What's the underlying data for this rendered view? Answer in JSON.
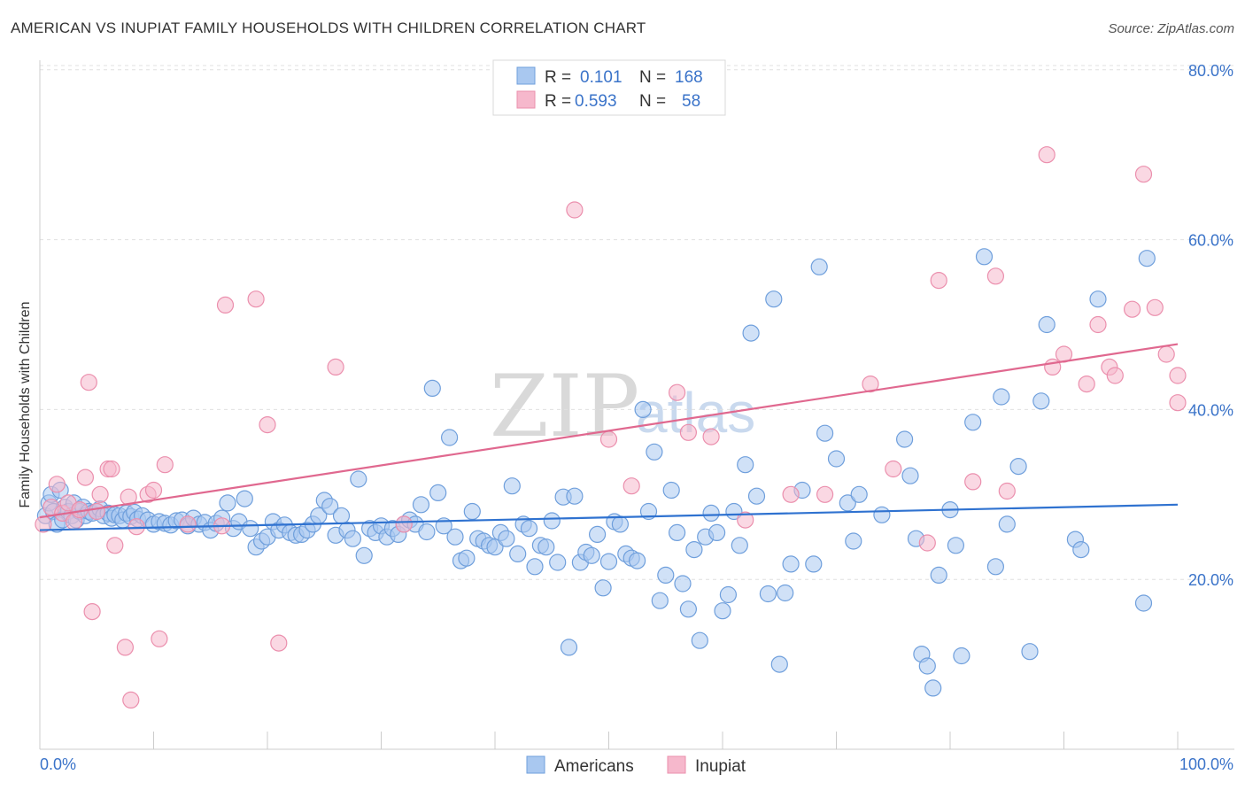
{
  "title": "AMERICAN VS INUPIAT FAMILY HOUSEHOLDS WITH CHILDREN CORRELATION CHART",
  "source": "Source: ZipAtlas.com",
  "watermark": {
    "zip": "ZIP",
    "atlas": "atlas"
  },
  "legend_top": [
    {
      "r_label": "R =",
      "r_value": "0.101",
      "n_label": "N =",
      "n_value": "168"
    },
    {
      "r_label": "R =",
      "r_value": "0.593",
      "n_label": "N =",
      "n_value": "58"
    }
  ],
  "legend_bottom": [
    "Americans",
    "Inupiat"
  ],
  "colors": {
    "americans_fill": "#a9c8f0",
    "americans_stroke": "#6f9fdc",
    "americans_line": "#2f72d0",
    "inupiat_fill": "#f6b8cc",
    "inupiat_stroke": "#eb8fad",
    "inupiat_line": "#e0688f",
    "tick_text": "#3a73c9",
    "grid": "#e0e0e0"
  },
  "chart_data": {
    "type": "scatter",
    "title": "AMERICAN VS INUPIAT FAMILY HOUSEHOLDS WITH CHILDREN CORRELATION CHART",
    "xlabel": "",
    "ylabel": "Family Households with Children",
    "xlim": [
      0,
      100
    ],
    "ylim": [
      0,
      83
    ],
    "x_tick_labels": [
      "0.0%",
      "100.0%"
    ],
    "y_ticks": [
      20,
      40,
      60,
      80
    ],
    "y_tick_labels": [
      "20.0%",
      "40.0%",
      "60.0%",
      "80.0%"
    ],
    "grid": true,
    "legend_placement": "top-center",
    "series": [
      {
        "name": "Americans",
        "R": 0.101,
        "N": 168,
        "trend": {
          "x": [
            0,
            100
          ],
          "y": [
            25.8,
            28.8
          ]
        },
        "points": [
          [
            0.5,
            27.5
          ],
          [
            0.8,
            29
          ],
          [
            1,
            30
          ],
          [
            1.2,
            28
          ],
          [
            1.5,
            26.5
          ],
          [
            1.8,
            30.5
          ],
          [
            2,
            27
          ],
          [
            2.2,
            28.5
          ],
          [
            2.5,
            28
          ],
          [
            2.8,
            27.5
          ],
          [
            3,
            29
          ],
          [
            3.2,
            27
          ],
          [
            3.5,
            28
          ],
          [
            3.8,
            28.5
          ],
          [
            4,
            27.5
          ],
          [
            4.3,
            28
          ],
          [
            4.6,
            27.8
          ],
          [
            5,
            28
          ],
          [
            5.3,
            28.3
          ],
          [
            5.6,
            27.5
          ],
          [
            6,
            27.8
          ],
          [
            6.3,
            27.2
          ],
          [
            6.6,
            27.6
          ],
          [
            7,
            27.5
          ],
          [
            7.3,
            27
          ],
          [
            7.6,
            27.8
          ],
          [
            8,
            27.4
          ],
          [
            8.3,
            27.9
          ],
          [
            8.6,
            27.1
          ],
          [
            9,
            27.5
          ],
          [
            9.5,
            27
          ],
          [
            10,
            26.5
          ],
          [
            10.5,
            26.8
          ],
          [
            11,
            26.6
          ],
          [
            11.5,
            26.4
          ],
          [
            12,
            26.9
          ],
          [
            12.5,
            27
          ],
          [
            13,
            26.3
          ],
          [
            13.5,
            27.2
          ],
          [
            14,
            26.5
          ],
          [
            14.5,
            26.7
          ],
          [
            15,
            25.8
          ],
          [
            15.5,
            26.6
          ],
          [
            16,
            27.2
          ],
          [
            16.5,
            29
          ],
          [
            17,
            26
          ],
          [
            17.5,
            26.8
          ],
          [
            18,
            29.5
          ],
          [
            18.5,
            26
          ],
          [
            19,
            23.8
          ],
          [
            19.5,
            24.5
          ],
          [
            20,
            25
          ],
          [
            20.5,
            26.8
          ],
          [
            21,
            25.8
          ],
          [
            21.5,
            26.4
          ],
          [
            22,
            25.5
          ],
          [
            22.5,
            25.2
          ],
          [
            23,
            25.3
          ],
          [
            23.5,
            25.8
          ],
          [
            24,
            26.5
          ],
          [
            24.5,
            27.5
          ],
          [
            25,
            29.3
          ],
          [
            25.5,
            28.6
          ],
          [
            26,
            25.2
          ],
          [
            26.5,
            27.5
          ],
          [
            27,
            25.8
          ],
          [
            27.5,
            24.8
          ],
          [
            28,
            31.8
          ],
          [
            28.5,
            22.8
          ],
          [
            29,
            26
          ],
          [
            29.5,
            25.5
          ],
          [
            30,
            26.3
          ],
          [
            30.5,
            25
          ],
          [
            31,
            26
          ],
          [
            31.5,
            25.3
          ],
          [
            32,
            26.5
          ],
          [
            32.5,
            27
          ],
          [
            33,
            26.5
          ],
          [
            33.5,
            28.8
          ],
          [
            34,
            25.6
          ],
          [
            34.5,
            42.5
          ],
          [
            35,
            30.2
          ],
          [
            35.5,
            26.3
          ],
          [
            36,
            36.7
          ],
          [
            36.5,
            25
          ],
          [
            37,
            22.2
          ],
          [
            37.5,
            22.5
          ],
          [
            38,
            28
          ],
          [
            38.5,
            24.8
          ],
          [
            39,
            24.5
          ],
          [
            39.5,
            24
          ],
          [
            40,
            23.8
          ],
          [
            40.5,
            25.5
          ],
          [
            41,
            24.8
          ],
          [
            41.5,
            31
          ],
          [
            42,
            23
          ],
          [
            42.5,
            26.5
          ],
          [
            43,
            26
          ],
          [
            43.5,
            21.5
          ],
          [
            44,
            24
          ],
          [
            44.5,
            23.8
          ],
          [
            45,
            26.9
          ],
          [
            45.5,
            22
          ],
          [
            46,
            29.7
          ],
          [
            46.5,
            12
          ],
          [
            47,
            29.8
          ],
          [
            47.5,
            22
          ],
          [
            48,
            23.2
          ],
          [
            48.5,
            22.8
          ],
          [
            49,
            25.3
          ],
          [
            49.5,
            19
          ],
          [
            50,
            22.1
          ],
          [
            50.5,
            26.8
          ],
          [
            51,
            26.5
          ],
          [
            51.5,
            23
          ],
          [
            52,
            22.5
          ],
          [
            52.5,
            22.2
          ],
          [
            53,
            40
          ],
          [
            53.5,
            28
          ],
          [
            54,
            35
          ],
          [
            54.5,
            17.5
          ],
          [
            55,
            20.5
          ],
          [
            55.5,
            30.5
          ],
          [
            56,
            25.5
          ],
          [
            56.5,
            19.5
          ],
          [
            57,
            16.5
          ],
          [
            57.5,
            23.5
          ],
          [
            58,
            12.8
          ],
          [
            58.5,
            25
          ],
          [
            59,
            27.8
          ],
          [
            59.5,
            25.5
          ],
          [
            60,
            16.3
          ],
          [
            60.5,
            18.2
          ],
          [
            61,
            28
          ],
          [
            61.5,
            24
          ],
          [
            62,
            33.5
          ],
          [
            62.5,
            49
          ],
          [
            63,
            29.8
          ],
          [
            64,
            18.3
          ],
          [
            64.5,
            53
          ],
          [
            65,
            10
          ],
          [
            65.5,
            18.4
          ],
          [
            66,
            21.8
          ],
          [
            67,
            30.5
          ],
          [
            68,
            21.8
          ],
          [
            68.5,
            56.8
          ],
          [
            69,
            37.2
          ],
          [
            70,
            34.2
          ],
          [
            71,
            29
          ],
          [
            71.5,
            24.5
          ],
          [
            72,
            30
          ],
          [
            74,
            27.6
          ],
          [
            76,
            36.5
          ],
          [
            76.5,
            32.2
          ],
          [
            77,
            24.8
          ],
          [
            77.5,
            11.2
          ],
          [
            78,
            9.8
          ],
          [
            78.5,
            7.2
          ],
          [
            79,
            20.5
          ],
          [
            80,
            28.2
          ],
          [
            80.5,
            24
          ],
          [
            81,
            11
          ],
          [
            82,
            38.5
          ],
          [
            83,
            58
          ],
          [
            84,
            21.5
          ],
          [
            84.5,
            41.5
          ],
          [
            85,
            26.5
          ],
          [
            86,
            33.3
          ],
          [
            87,
            11.5
          ],
          [
            88,
            41
          ],
          [
            88.5,
            50
          ],
          [
            91,
            24.7
          ],
          [
            91.5,
            23.5
          ],
          [
            93,
            53
          ],
          [
            97,
            17.2
          ],
          [
            97.3,
            57.8
          ]
        ]
      },
      {
        "name": "Inupiat",
        "R": 0.593,
        "N": 58,
        "trend": {
          "x": [
            0,
            100
          ],
          "y": [
            27.3,
            47.7
          ]
        },
        "points": [
          [
            0.3,
            26.5
          ],
          [
            1,
            28.5
          ],
          [
            1.5,
            31.2
          ],
          [
            2,
            27.8
          ],
          [
            2.5,
            29
          ],
          [
            3,
            26.8
          ],
          [
            3.5,
            28.2
          ],
          [
            4,
            32
          ],
          [
            4.3,
            43.2
          ],
          [
            4.6,
            16.2
          ],
          [
            5,
            28
          ],
          [
            5.3,
            30
          ],
          [
            6,
            33
          ],
          [
            6.3,
            33
          ],
          [
            6.6,
            24
          ],
          [
            7.5,
            12
          ],
          [
            7.8,
            29.7
          ],
          [
            8,
            5.8
          ],
          [
            8.5,
            26.2
          ],
          [
            9.5,
            30
          ],
          [
            10,
            30.5
          ],
          [
            10.5,
            13
          ],
          [
            11,
            33.5
          ],
          [
            13,
            26.5
          ],
          [
            16,
            26.3
          ],
          [
            16.3,
            52.3
          ],
          [
            19,
            53
          ],
          [
            20,
            38.2
          ],
          [
            21,
            12.5
          ],
          [
            26,
            45
          ],
          [
            32,
            26.5
          ],
          [
            47,
            63.5
          ],
          [
            50,
            36.5
          ],
          [
            52,
            31
          ],
          [
            56,
            42
          ],
          [
            57,
            37.3
          ],
          [
            59,
            36.8
          ],
          [
            62,
            27
          ],
          [
            66,
            30
          ],
          [
            69,
            30
          ],
          [
            73,
            43
          ],
          [
            75,
            33
          ],
          [
            78,
            24.3
          ],
          [
            79,
            55.2
          ],
          [
            82,
            31.5
          ],
          [
            84,
            55.7
          ],
          [
            85,
            30.4
          ],
          [
            88.5,
            70
          ],
          [
            89,
            45
          ],
          [
            90,
            46.5
          ],
          [
            92,
            43
          ],
          [
            93,
            50
          ],
          [
            94,
            45
          ],
          [
            94.5,
            44
          ],
          [
            96,
            51.8
          ],
          [
            97,
            67.7
          ],
          [
            98,
            52
          ],
          [
            99,
            46.5
          ],
          [
            100,
            40.8
          ],
          [
            100,
            44
          ]
        ]
      }
    ]
  }
}
